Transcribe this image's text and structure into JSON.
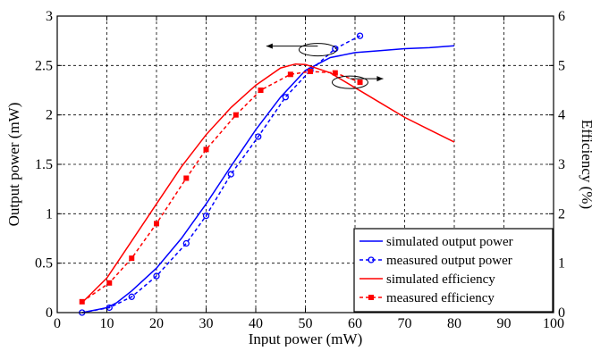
{
  "chart_data": {
    "type": "line",
    "title": "",
    "xlabel": "Input power (mW)",
    "ylabel_left": "Output power (mW)",
    "ylabel_right": "Efficiency (%)",
    "xlim": [
      0,
      100
    ],
    "ylim_left": [
      0,
      3
    ],
    "ylim_right": [
      0,
      6
    ],
    "x_ticks": [
      "0",
      "10",
      "20",
      "30",
      "40",
      "50",
      "60",
      "70",
      "80",
      "90",
      "100"
    ],
    "y_left_ticks": [
      "0",
      "0.5",
      "1",
      "1.5",
      "2",
      "2.5",
      "3"
    ],
    "y_right_ticks": [
      "0",
      "1",
      "2",
      "3",
      "4",
      "5",
      "6"
    ],
    "grid": true,
    "legend_position": "bottom-right",
    "series": [
      {
        "name": "simulated output power",
        "axis": "left",
        "color": "#0000ff",
        "style": "solid",
        "marker": "none",
        "x": [
          5,
          8,
          10,
          12,
          15,
          20,
          25,
          30,
          35,
          40,
          45,
          50,
          55,
          60,
          65,
          70,
          75,
          80
        ],
        "y": [
          0.0,
          0.03,
          0.05,
          0.1,
          0.22,
          0.45,
          0.75,
          1.1,
          1.48,
          1.85,
          2.18,
          2.45,
          2.58,
          2.63,
          2.65,
          2.67,
          2.68,
          2.7
        ]
      },
      {
        "name": "measured output power",
        "axis": "left",
        "color": "#0000ff",
        "style": "dashed",
        "marker": "circle",
        "x": [
          5,
          10.5,
          15,
          20,
          26,
          30,
          35,
          40.5,
          46,
          51,
          56,
          61
        ],
        "y": [
          0.0,
          0.05,
          0.16,
          0.37,
          0.7,
          0.98,
          1.4,
          1.78,
          2.18,
          2.45,
          2.67,
          2.8
        ]
      },
      {
        "name": "simulated efficiency",
        "axis": "right",
        "color": "#ff0000",
        "style": "solid",
        "marker": "none",
        "x": [
          5,
          10,
          15,
          20,
          25,
          30,
          35,
          40,
          45,
          48,
          50,
          55,
          60,
          65,
          70,
          75,
          80
        ],
        "y": [
          0.2,
          0.7,
          1.45,
          2.2,
          2.95,
          3.6,
          4.15,
          4.6,
          4.95,
          5.03,
          5.02,
          4.85,
          4.55,
          4.25,
          3.95,
          3.7,
          3.45
        ]
      },
      {
        "name": "measured efficiency",
        "axis": "right",
        "color": "#ff0000",
        "style": "dashed",
        "marker": "square",
        "x": [
          5,
          10.5,
          15,
          20,
          26,
          30,
          36,
          41,
          47,
          51,
          56,
          61
        ],
        "y": [
          0.22,
          0.6,
          1.1,
          1.8,
          2.72,
          3.3,
          4.0,
          4.5,
          4.82,
          4.88,
          4.85,
          4.66
        ]
      }
    ]
  }
}
